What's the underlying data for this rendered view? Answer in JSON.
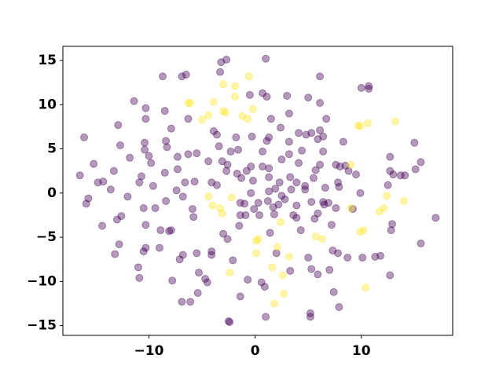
{
  "chart_data": {
    "type": "scatter",
    "xlim": [
      -18.1,
      18.6
    ],
    "ylim": [
      -16.1,
      16.6
    ],
    "xticks": [
      {
        "value": -10,
        "label": "−10"
      },
      0,
      10
    ],
    "yticks": [
      {
        "value": -15,
        "label": "−15"
      },
      {
        "value": -10,
        "label": "−10"
      },
      {
        "value": -5,
        "label": "−5"
      },
      0,
      5,
      10,
      15
    ],
    "alpha": 0.4,
    "series": [
      {
        "color": "#440154",
        "x": [
          -16.5,
          -16.1,
          -15.9,
          -15.7,
          -15.2,
          -14.8,
          -14.3,
          -14.4,
          -13.3,
          -12.9,
          -13.0,
          -13.2,
          -12.8,
          -12.7,
          -12.6,
          -13.6,
          -12.0,
          -11.8,
          -11.4,
          -11.0,
          -10.9,
          -10.9,
          -10.7,
          -10.5,
          -10.4,
          -10.4,
          -10.3,
          -10.3,
          -10.5,
          -10.3,
          -10.3,
          -10.0,
          -9.8,
          -9.6,
          -9.4,
          -9.0,
          -8.9,
          -8.7,
          -8.5,
          -8.4,
          -8.3,
          -8.5,
          -8.4,
          -8.1,
          -7.9,
          -7.8,
          -7.9,
          -7.4,
          -7.3,
          -7.3,
          -7.1,
          -6.8,
          -6.9,
          -6.5,
          -6.9,
          -6.8,
          -6.6,
          -6.3,
          -6.3,
          -6.1,
          -5.9,
          -5.8,
          -5.7,
          -5.5,
          -5.5,
          -5.3,
          -5.4,
          -4.7,
          -4.5,
          -4.4,
          -4.1,
          -4.1,
          -4.1,
          -3.9,
          -3.6,
          -3.6,
          -3.4,
          -3.3,
          -3.2,
          -3.1,
          -3.0,
          -2.7,
          -2.7,
          -2.6,
          -2.6,
          -2.5,
          -2.4,
          -2.3,
          -2.1,
          -1.8,
          -1.7,
          -1.6,
          -1.5,
          -1.4,
          -1.4,
          -1.4,
          -1.3,
          -1.0,
          -0.9,
          -0.8,
          -0.7,
          -0.5,
          -0.4,
          -0.4,
          -0.3,
          -0.2,
          -0.1,
          0.3,
          0.4,
          0.6,
          0.7,
          0.7,
          0.7,
          0.9,
          1.0,
          1.0,
          1.1,
          1.1,
          1.2,
          1.3,
          1.3,
          1.3,
          1.3,
          1.4,
          1.5,
          1.7,
          1.8,
          1.9,
          2.0,
          2.2,
          2.3,
          2.4,
          2.5,
          2.5,
          2.8,
          3.0,
          3.2,
          3.2,
          3.2,
          3.3,
          3.3,
          3.4,
          3.6,
          3.9,
          3.9,
          3.9,
          4.1,
          4.1,
          4.3,
          4.4,
          4.7,
          4.7,
          4.8,
          5.0,
          5.0,
          5.2,
          5.2,
          5.3,
          5.3,
          5.3,
          5.5,
          5.6,
          5.7,
          5.9,
          5.9,
          5.9,
          6.1,
          6.1,
          6.1,
          6.1,
          6.4,
          6.4,
          6.4,
          6.5,
          6.6,
          6.7,
          6.9,
          7.0,
          7.2,
          7.3,
          7.4,
          7.6,
          7.6,
          7.8,
          7.8,
          7.9,
          7.9,
          8.0,
          8.3,
          8.5,
          8.8,
          9.2,
          8.7,
          9.5,
          9.9,
          10.0,
          10.1,
          10.7,
          10.7,
          11.3,
          11.8,
          12.5,
          12.7,
          12.7,
          12.7,
          12.8,
          12.9,
          13.0,
          13.7,
          14.1,
          15.0,
          15.1,
          15.6,
          15.6,
          17.0
        ],
        "values": [
          2.0,
          6.3,
          -1.2,
          -0.6,
          3.3,
          1.2,
          1.3,
          -3.7,
          2.5,
          7.7,
          -3.0,
          -6.9,
          -5.8,
          5.4,
          -2.6,
          0.4,
          -0.4,
          4.0,
          10.4,
          -8.4,
          -9.6,
          1.2,
          1.9,
          -1.7,
          5.7,
          4.9,
          9.6,
          8.4,
          -6.6,
          -6.2,
          -3.6,
          4.2,
          3.4,
          0.8,
          -1.7,
          -6.2,
          -4.2,
          13.2,
          9.3,
          5.9,
          5.2,
          2.3,
          -0.9,
          -4.3,
          -4.2,
          -9.9,
          7.3,
          0.3,
          2.7,
          4.1,
          -7.5,
          -7.0,
          13.2,
          13.4,
          -12.3,
          -0.4,
          1.2,
          8.4,
          4.4,
          -12.3,
          -1.8,
          -2.7,
          1.3,
          4.5,
          -6.8,
          -9.0,
          -11.3,
          -9.7,
          -10.1,
          3.6,
          1.2,
          -6.6,
          -7.0,
          7.0,
          6.6,
          0.9,
          5.3,
          13.7,
          14.8,
          3.6,
          -4.6,
          15.1,
          2.5,
          3.2,
          -5.2,
          -14.5,
          -14.6,
          4.7,
          -7.6,
          6.3,
          2.2,
          4.9,
          -3.7,
          -1.1,
          -2.5,
          -11.7,
          1.7,
          -1.2,
          -2.5,
          2.5,
          -9.8,
          11.1,
          3.0,
          0.0,
          6.4,
          1.4,
          -1.8,
          -1.1,
          -2.5,
          -10.1,
          3.0,
          4.7,
          11.3,
          -10.6,
          -14.0,
          15.2,
          10.9,
          5.9,
          -0.9,
          6.3,
          2.8,
          1.8,
          0.2,
          -4.5,
          8.4,
          -1.6,
          -2.4,
          0.5,
          -6.8,
          -1.3,
          1.2,
          7.4,
          -0.3,
          3.8,
          -0.7,
          11.0,
          9.0,
          4.4,
          5.8,
          -8.8,
          1.8,
          0.4,
          -2.5,
          -2.8,
          1.2,
          -1.4,
          3.4,
          6.8,
          -4.2,
          4.8,
          0.4,
          0.8,
          6.6,
          -7.3,
          10.8,
          -13.6,
          -14.0,
          6.8,
          -1.0,
          -8.6,
          1.7,
          -2.9,
          2.6,
          6.1,
          -9.2,
          -2.3,
          7.1,
          3.2,
          13.2,
          10.2,
          4.7,
          -1.0,
          6.4,
          -1.3,
          0.6,
          8.4,
          -1.1,
          -8.7,
          -3.6,
          -6.5,
          -11.2,
          -1.7,
          3.2,
          1.2,
          -6.8,
          0.7,
          -12.9,
          3.0,
          5.8,
          3.1,
          2.5,
          -1.8,
          -7.3,
          2.1,
          0.0,
          11.9,
          -7.3,
          11.8,
          12.1,
          -7.2,
          -7.1,
          0.9,
          2.5,
          4.1,
          -9.3,
          -4.2,
          -3.5,
          2.1,
          2.0,
          2.0,
          5.7,
          2.7,
          3.5,
          -5.7,
          -2.8
        ]
      },
      {
        "color": "#fde725",
        "x": [
          -6.3,
          -6.1,
          -5.0,
          -4.4,
          -4.4,
          -4.0,
          -3.9,
          -3.3,
          -3.1,
          -3.0,
          -3.0,
          -2.8,
          -2.4,
          -2.2,
          -1.9,
          -1.9,
          -1.2,
          -0.7,
          -0.6,
          -0.2,
          0.1,
          0.1,
          0.3,
          1.6,
          1.8,
          2.1,
          2.4,
          2.6,
          2.7,
          3.2,
          5.7,
          6.3,
          9.0,
          9.0,
          9.7,
          9.9,
          9.9,
          10.2,
          10.4,
          10.6,
          11.7,
          12.1,
          12.4,
          13.2,
          14.0
        ],
        "values": [
          10.2,
          10.2,
          8.3,
          8.8,
          -0.4,
          -1.4,
          10.3,
          -1.7,
          -2.3,
          12.3,
          9.3,
          9.1,
          -9.0,
          -0.5,
          10.9,
          12.1,
          8.7,
          8.4,
          13.2,
          9.5,
          -5.4,
          -6.8,
          -5.2,
          -8.4,
          -12.5,
          -6.1,
          -3.3,
          -9.3,
          -11.4,
          -7.2,
          -4.9,
          -5.2,
          -1.7,
          3.2,
          7.6,
          7.6,
          -4.4,
          -4.2,
          -10.7,
          7.9,
          -2.1,
          -1.7,
          -0.3,
          8.1,
          -0.9
        ]
      }
    ]
  }
}
